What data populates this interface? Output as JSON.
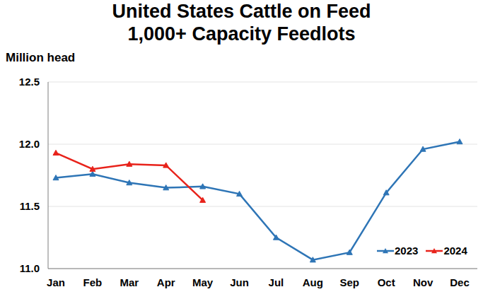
{
  "chart_data": {
    "type": "line",
    "title": "United States Cattle on Feed",
    "subtitle": "1,000+ Capacity Feedlots",
    "y_label": "Million head",
    "categories": [
      "Jan",
      "Feb",
      "Mar",
      "Apr",
      "May",
      "Jun",
      "Jul",
      "Aug",
      "Sep",
      "Oct",
      "Nov",
      "Dec"
    ],
    "series": [
      {
        "name": "2023",
        "color": "#2e75b6",
        "marker": "triangle",
        "values": [
          11.73,
          11.76,
          11.69,
          11.65,
          11.66,
          11.6,
          11.25,
          11.07,
          11.13,
          11.61,
          11.96,
          12.02
        ]
      },
      {
        "name": "2024",
        "color": "#e8231b",
        "marker": "triangle",
        "values": [
          11.93,
          11.8,
          11.84,
          11.83,
          11.55,
          null,
          null,
          null,
          null,
          null,
          null,
          null
        ]
      }
    ],
    "ylim": [
      11,
      12.5
    ],
    "yticks": [
      {
        "value": 11,
        "label": "11.0"
      },
      11.5,
      {
        "value": 12,
        "label": "12.0"
      },
      12.5
    ],
    "grid": true,
    "legend": "lower right"
  }
}
